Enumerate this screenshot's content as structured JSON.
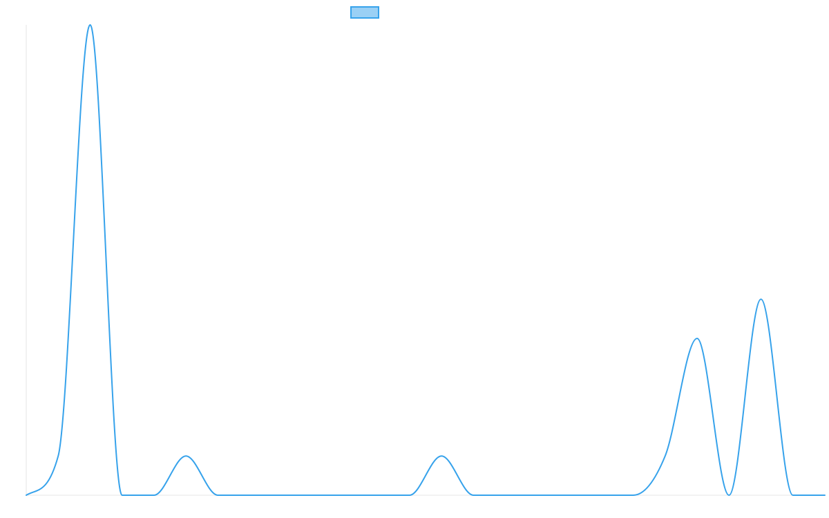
{
  "chart_data": {
    "type": "line",
    "title": "",
    "xlabel": "",
    "ylabel": "",
    "grid": false,
    "legend_position": "top",
    "x": [
      0,
      1,
      2,
      3,
      4,
      5,
      6,
      7,
      8,
      9,
      10,
      11,
      12,
      13,
      14,
      15,
      16,
      17,
      18,
      19,
      20,
      21,
      22,
      23,
      24,
      25
    ],
    "ylim": [
      0,
      12
    ],
    "series": [
      {
        "name": "",
        "line_color": "#36a2eb",
        "fill_color": "#9ad0f5",
        "values": [
          0,
          1,
          12,
          0,
          0,
          1,
          0,
          0,
          0,
          0,
          0,
          0,
          0,
          1,
          0,
          0,
          0,
          0,
          0,
          0,
          1,
          4,
          0,
          5,
          0,
          0
        ]
      }
    ]
  }
}
